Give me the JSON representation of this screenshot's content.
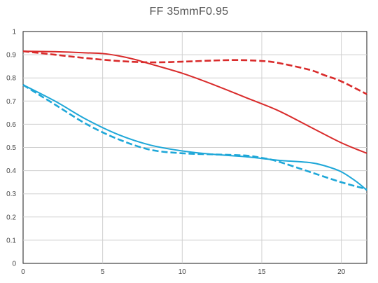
{
  "chart_data": {
    "type": "line",
    "title": "FF 35mmF0.95",
    "xlabel": "",
    "ylabel": "",
    "xlim": [
      0,
      21.6
    ],
    "ylim": [
      0,
      1
    ],
    "x_ticks": [
      0,
      5,
      10,
      15,
      20
    ],
    "y_ticks": [
      0,
      0.1,
      0.2,
      0.3,
      0.4,
      0.5,
      0.6,
      0.7,
      0.8,
      0.9,
      1
    ],
    "grid": "vertical and horizontal",
    "legend": "none",
    "series": [
      {
        "color": "#d92b2b",
        "style": "solid",
        "points": [
          [
            0,
            0.915
          ],
          [
            2,
            0.913
          ],
          [
            4,
            0.908
          ],
          [
            5,
            0.905
          ],
          [
            6,
            0.895
          ],
          [
            7,
            0.88
          ],
          [
            8,
            0.86
          ],
          [
            10,
            0.82
          ],
          [
            12,
            0.77
          ],
          [
            14,
            0.715
          ],
          [
            16,
            0.66
          ],
          [
            18,
            0.59
          ],
          [
            20,
            0.52
          ],
          [
            21.6,
            0.475
          ]
        ]
      },
      {
        "color": "#d92b2b",
        "style": "dashed",
        "points": [
          [
            0,
            0.915
          ],
          [
            2,
            0.9
          ],
          [
            4,
            0.885
          ],
          [
            6,
            0.873
          ],
          [
            8,
            0.867
          ],
          [
            10,
            0.87
          ],
          [
            12,
            0.875
          ],
          [
            13.5,
            0.877
          ],
          [
            15,
            0.873
          ],
          [
            16,
            0.865
          ],
          [
            18,
            0.835
          ],
          [
            19,
            0.81
          ],
          [
            20,
            0.785
          ],
          [
            21.6,
            0.73
          ]
        ]
      },
      {
        "color": "#1ea7d8",
        "style": "solid",
        "points": [
          [
            0,
            0.77
          ],
          [
            2,
            0.7
          ],
          [
            4,
            0.62
          ],
          [
            6,
            0.555
          ],
          [
            8,
            0.51
          ],
          [
            10,
            0.485
          ],
          [
            12,
            0.47
          ],
          [
            14,
            0.46
          ],
          [
            16,
            0.445
          ],
          [
            18,
            0.435
          ],
          [
            19,
            0.42
          ],
          [
            20,
            0.395
          ],
          [
            21,
            0.35
          ],
          [
            21.6,
            0.315
          ]
        ]
      },
      {
        "color": "#1ea7d8",
        "style": "dashed",
        "points": [
          [
            0,
            0.77
          ],
          [
            2,
            0.685
          ],
          [
            4,
            0.6
          ],
          [
            6,
            0.535
          ],
          [
            8,
            0.49
          ],
          [
            10,
            0.475
          ],
          [
            12,
            0.47
          ],
          [
            14,
            0.465
          ],
          [
            15,
            0.455
          ],
          [
            16,
            0.44
          ],
          [
            18,
            0.395
          ],
          [
            20,
            0.35
          ],
          [
            21.6,
            0.32
          ]
        ]
      }
    ]
  }
}
